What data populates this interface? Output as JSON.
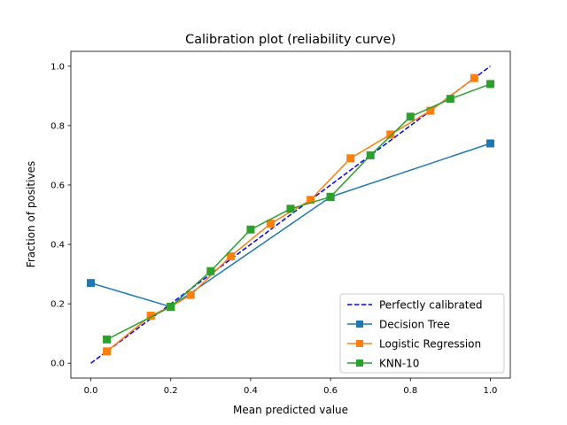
{
  "chart_data": {
    "type": "line",
    "title": "Calibration plot (reliability curve)",
    "xlabel": "Mean predicted value",
    "ylabel": "Fraction of positives",
    "xlim": [
      -0.05,
      1.05
    ],
    "ylim": [
      -0.05,
      1.05
    ],
    "xticks": [
      "0.0",
      "0.2",
      "0.4",
      "0.6",
      "0.8",
      "1.0"
    ],
    "yticks": [
      "0.0",
      "0.2",
      "0.4",
      "0.6",
      "0.8",
      "1.0"
    ],
    "grid": false,
    "legend_position": "lower-right",
    "series": [
      {
        "name": "Perfectly calibrated",
        "color": "#0000ff",
        "style": "dashed",
        "marker": "none",
        "x": [
          0.0,
          1.0
        ],
        "y": [
          0.0,
          1.0
        ]
      },
      {
        "name": "Decision Tree",
        "color": "#1f77b4",
        "style": "solid",
        "marker": "square",
        "x": [
          0.0,
          0.2,
          0.6,
          1.0
        ],
        "y": [
          0.27,
          0.19,
          0.56,
          0.74
        ]
      },
      {
        "name": "Logistic Regression",
        "color": "#ff7f0e",
        "style": "solid",
        "marker": "square",
        "x": [
          0.04,
          0.15,
          0.2,
          0.25,
          0.35,
          0.45,
          0.55,
          0.65,
          0.75,
          0.85,
          0.96
        ],
        "y": [
          0.04,
          0.16,
          0.19,
          0.23,
          0.36,
          0.47,
          0.55,
          0.69,
          0.77,
          0.85,
          0.96
        ]
      },
      {
        "name": "KNN-10",
        "color": "#2ca02c",
        "style": "solid",
        "marker": "square",
        "x": [
          0.04,
          0.2,
          0.3,
          0.4,
          0.5,
          0.6,
          0.7,
          0.8,
          0.9,
          1.0
        ],
        "y": [
          0.08,
          0.19,
          0.31,
          0.45,
          0.52,
          0.56,
          0.7,
          0.83,
          0.89,
          0.94
        ]
      }
    ]
  }
}
